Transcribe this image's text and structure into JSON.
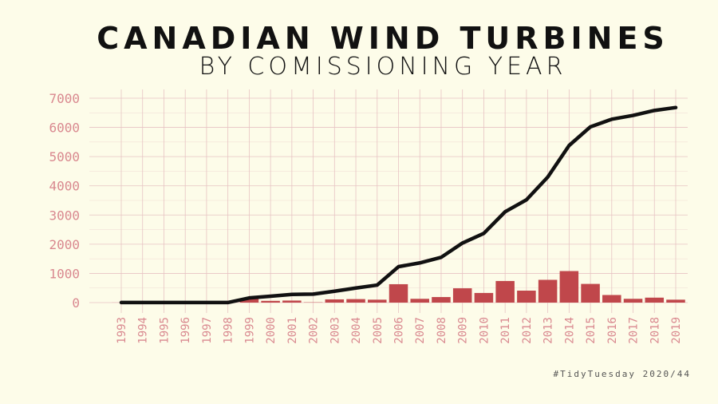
{
  "title": "Canadian Wind Turbines",
  "subtitle": "by Comissioning Year",
  "caption": "#TidyTuesday 2020/44",
  "colors": {
    "background": "#fdfce9",
    "grid": "#e7c3c3",
    "axis_text": "#d9888f",
    "bar": "#c0474b",
    "line": "#111111"
  },
  "chart_data": {
    "type": "bar",
    "categories": [
      "1993",
      "1994",
      "1995",
      "1996",
      "1997",
      "1998",
      "1999",
      "2000",
      "2001",
      "2002",
      "2003",
      "2004",
      "2005",
      "2006",
      "2007",
      "2008",
      "2009",
      "2010",
      "2011",
      "2012",
      "2013",
      "2014",
      "2015",
      "2016",
      "2017",
      "2018",
      "2019"
    ],
    "series": [
      {
        "type": "bar",
        "values": [
          2,
          0,
          0,
          0,
          0,
          0,
          150,
          60,
          70,
          10,
          110,
          120,
          100,
          630,
          130,
          190,
          490,
          330,
          740,
          410,
          780,
          1080,
          640,
          260,
          130,
          170,
          100
        ]
      },
      {
        "type": "line",
        "values": [
          2,
          2,
          2,
          2,
          2,
          2,
          160,
          220,
          280,
          290,
          390,
          500,
          600,
          1230,
          1360,
          1550,
          2040,
          2370,
          3110,
          3520,
          4300,
          5380,
          6020,
          6280,
          6410,
          6580,
          6680
        ]
      }
    ],
    "xlabel": "",
    "ylabel": "",
    "ylim": [
      0,
      7000
    ],
    "yticks": [
      0,
      1000,
      2000,
      3000,
      4000,
      5000,
      6000,
      7000
    ],
    "grid": true
  }
}
